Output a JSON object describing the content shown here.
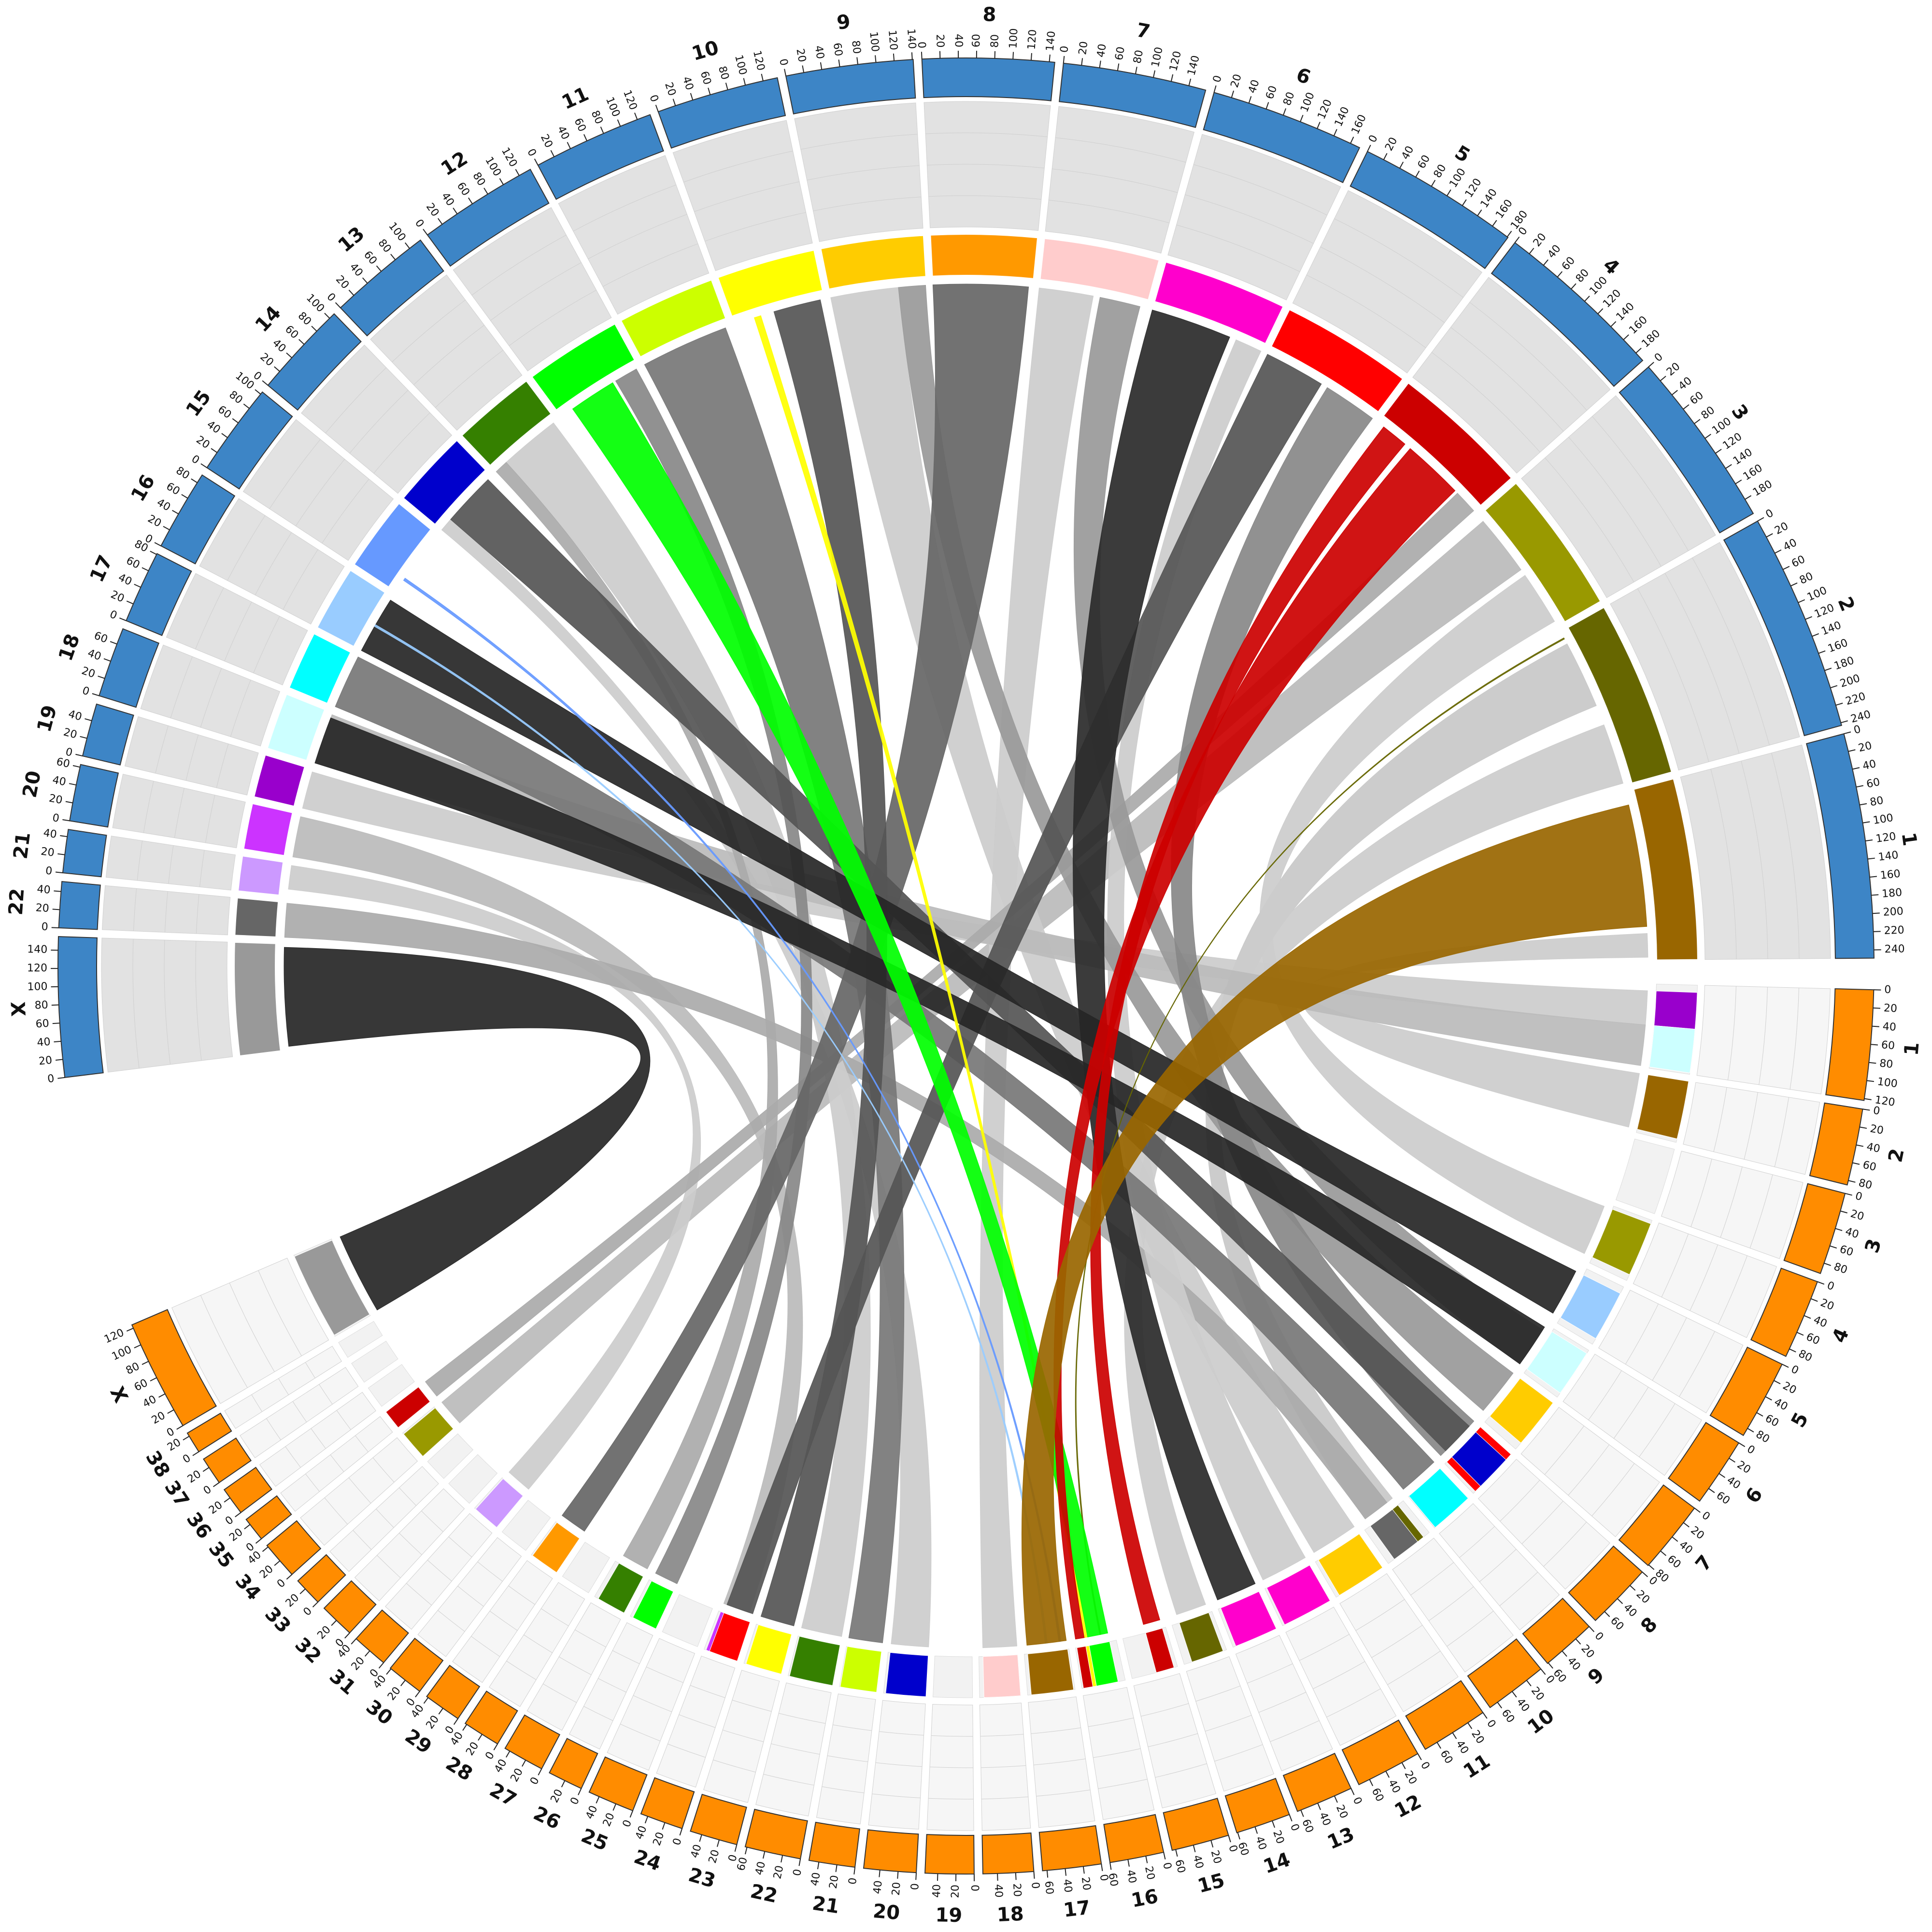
{
  "chart_data": {
    "type": "chord",
    "genome_a": {
      "band_color": "#3d85c6",
      "track_color": "#e2e2e2",
      "chromosomes": [
        {
          "name": "1",
          "length": 249,
          "color": "#996600",
          "ticks": [
            0,
            20,
            40,
            60,
            80,
            100,
            120,
            140,
            160,
            180,
            200,
            220,
            240
          ]
        },
        {
          "name": "2",
          "length": 243,
          "color": "#666600",
          "ticks": [
            0,
            20,
            40,
            60,
            80,
            100,
            120,
            140,
            160,
            180,
            200,
            220,
            240
          ]
        },
        {
          "name": "3",
          "length": 198,
          "color": "#999900",
          "ticks": [
            0,
            20,
            40,
            60,
            80,
            100,
            120,
            140,
            160,
            180
          ]
        },
        {
          "name": "4",
          "length": 191,
          "color": "#cc0000",
          "ticks": [
            0,
            20,
            40,
            60,
            80,
            100,
            120,
            140,
            160,
            180
          ]
        },
        {
          "name": "5",
          "length": 181,
          "color": "#ff0000",
          "ticks": [
            0,
            20,
            40,
            60,
            80,
            100,
            120,
            140,
            160,
            180
          ]
        },
        {
          "name": "6",
          "length": 171,
          "color": "#ff00cc",
          "ticks": [
            0,
            20,
            40,
            60,
            80,
            100,
            120,
            140,
            160
          ]
        },
        {
          "name": "7",
          "length": 159,
          "color": "#ffcccc",
          "ticks": [
            0,
            20,
            40,
            60,
            80,
            100,
            120,
            140
          ]
        },
        {
          "name": "8",
          "length": 146,
          "color": "#ff9900",
          "ticks": [
            0,
            20,
            40,
            60,
            80,
            100,
            120,
            140
          ]
        },
        {
          "name": "9",
          "length": 141,
          "color": "#ffcc00",
          "ticks": [
            0,
            20,
            40,
            60,
            80,
            100,
            120,
            140
          ]
        },
        {
          "name": "10",
          "length": 136,
          "color": "#ffff00",
          "ticks": [
            0,
            20,
            40,
            60,
            80,
            100,
            120
          ]
        },
        {
          "name": "11",
          "length": 135,
          "color": "#ccff00",
          "ticks": [
            0,
            20,
            40,
            60,
            80,
            100,
            120
          ]
        },
        {
          "name": "12",
          "length": 134,
          "color": "#00ff00",
          "ticks": [
            0,
            20,
            40,
            60,
            80,
            100,
            120
          ]
        },
        {
          "name": "13",
          "length": 115,
          "color": "#358000",
          "ticks": [
            0,
            20,
            40,
            60,
            80,
            100
          ]
        },
        {
          "name": "14",
          "length": 107,
          "color": "#0000cc",
          "ticks": [
            0,
            20,
            40,
            60,
            80,
            100
          ]
        },
        {
          "name": "15",
          "length": 103,
          "color": "#6699ff",
          "ticks": [
            0,
            20,
            40,
            60,
            80,
            100
          ]
        },
        {
          "name": "16",
          "length": 90,
          "color": "#99ccff",
          "ticks": [
            0,
            20,
            40,
            60,
            80
          ]
        },
        {
          "name": "17",
          "length": 81,
          "color": "#00ffff",
          "ticks": [
            0,
            20,
            40,
            60,
            80
          ]
        },
        {
          "name": "18",
          "length": 78,
          "color": "#ccffff",
          "ticks": [
            0,
            20,
            40,
            60
          ]
        },
        {
          "name": "19",
          "length": 59,
          "color": "#9900cc",
          "ticks": [
            0,
            20,
            40
          ]
        },
        {
          "name": "20",
          "length": 63,
          "color": "#cc33ff",
          "ticks": [
            0,
            20,
            40,
            60
          ]
        },
        {
          "name": "21",
          "length": 48,
          "color": "#cc99ff",
          "ticks": [
            0,
            20,
            40
          ]
        },
        {
          "name": "22",
          "length": 51,
          "color": "#666666",
          "ticks": [
            0,
            20,
            40
          ]
        },
        {
          "name": "X",
          "length": 155,
          "color": "#999999",
          "ticks": [
            0,
            20,
            40,
            60,
            80,
            100,
            120,
            140
          ]
        }
      ]
    },
    "genome_b": {
      "band_color": "#ff8c00",
      "track_color": "#f6f6f6",
      "chromosomes": [
        {
          "name": "1",
          "length": 122,
          "ticks": [
            0,
            20,
            40,
            60,
            80,
            100,
            120
          ]
        },
        {
          "name": "2",
          "length": 85,
          "ticks": [
            0,
            20,
            40,
            60,
            80
          ]
        },
        {
          "name": "3",
          "length": 92,
          "ticks": [
            0,
            20,
            40,
            60,
            80
          ]
        },
        {
          "name": "4",
          "length": 89,
          "ticks": [
            0,
            20,
            40,
            60,
            80
          ]
        },
        {
          "name": "5",
          "length": 89,
          "ticks": [
            0,
            20,
            40,
            60,
            80
          ]
        },
        {
          "name": "6",
          "length": 77,
          "ticks": [
            0,
            20,
            40,
            60
          ]
        },
        {
          "name": "7",
          "length": 81,
          "ticks": [
            0,
            20,
            40,
            60,
            80
          ]
        },
        {
          "name": "8",
          "length": 74,
          "ticks": [
            0,
            20,
            40,
            60
          ]
        },
        {
          "name": "9",
          "length": 61,
          "ticks": [
            0,
            20,
            40,
            60
          ]
        },
        {
          "name": "10",
          "length": 70,
          "ticks": [
            0,
            20,
            40,
            60
          ]
        },
        {
          "name": "11",
          "length": 75,
          "ticks": [
            0,
            20,
            40,
            60
          ]
        },
        {
          "name": "12",
          "length": 73,
          "ticks": [
            0,
            20,
            40,
            60
          ]
        },
        {
          "name": "13",
          "length": 64,
          "ticks": [
            0,
            20,
            40,
            60
          ]
        },
        {
          "name": "14",
          "length": 61,
          "ticks": [
            0,
            20,
            40,
            60
          ]
        },
        {
          "name": "15",
          "length": 64,
          "ticks": [
            0,
            20,
            40,
            60
          ]
        },
        {
          "name": "16",
          "length": 60,
          "ticks": [
            0,
            20,
            40,
            60
          ]
        },
        {
          "name": "17",
          "length": 65,
          "ticks": [
            0,
            20,
            40,
            60
          ]
        },
        {
          "name": "18",
          "length": 56,
          "ticks": [
            0,
            20,
            40
          ]
        },
        {
          "name": "19",
          "length": 54,
          "ticks": [
            0,
            20,
            40
          ]
        },
        {
          "name": "20",
          "length": 58,
          "ticks": [
            0,
            20,
            40
          ]
        },
        {
          "name": "21",
          "length": 51,
          "ticks": [
            0,
            20,
            40
          ]
        },
        {
          "name": "22",
          "length": 62,
          "ticks": [
            0,
            20,
            40,
            60
          ]
        },
        {
          "name": "23",
          "length": 53,
          "ticks": [
            0,
            20,
            40
          ]
        },
        {
          "name": "24",
          "length": 48,
          "ticks": [
            0,
            20,
            40
          ]
        },
        {
          "name": "25",
          "length": 52,
          "ticks": [
            0,
            20,
            40
          ]
        },
        {
          "name": "26",
          "length": 39,
          "ticks": [
            0,
            20
          ]
        },
        {
          "name": "27",
          "length": 46,
          "ticks": [
            0,
            20,
            40
          ]
        },
        {
          "name": "28",
          "length": 42,
          "ticks": [
            0,
            20,
            40
          ]
        },
        {
          "name": "29",
          "length": 42,
          "ticks": [
            0,
            20,
            40
          ]
        },
        {
          "name": "30",
          "length": 41,
          "ticks": [
            0,
            20,
            40
          ]
        },
        {
          "name": "31",
          "length": 40,
          "ticks": [
            0,
            20,
            40
          ]
        },
        {
          "name": "32",
          "length": 39,
          "ticks": [
            0,
            20
          ]
        },
        {
          "name": "33",
          "length": 32,
          "ticks": [
            0,
            20
          ]
        },
        {
          "name": "34",
          "length": 42,
          "ticks": [
            0,
            20,
            40
          ]
        },
        {
          "name": "35",
          "length": 27,
          "ticks": [
            0,
            20
          ]
        },
        {
          "name": "36",
          "length": 31,
          "ticks": [
            0,
            20
          ]
        },
        {
          "name": "37",
          "length": 31,
          "ticks": [
            0,
            20
          ]
        },
        {
          "name": "38",
          "length": 24,
          "ticks": [
            0,
            20
          ]
        },
        {
          "name": "X",
          "length": 124,
          "ticks": [
            0,
            20,
            40,
            60,
            80,
            100,
            120
          ]
        }
      ]
    },
    "links": [
      {
        "a": "2",
        "a_start": 20,
        "a_end": 120,
        "b": "10",
        "b_start": 10,
        "b_end": 60,
        "color": "#c8c8c8"
      },
      {
        "a": "2",
        "a_start": 150,
        "a_end": 240,
        "b": "14",
        "b_start": 5,
        "b_end": 50,
        "color": "#cccccc"
      },
      {
        "a": "3",
        "a_start": 10,
        "a_end": 100,
        "b": "34",
        "b_start": 0,
        "b_end": 40,
        "color": "#bbbbbb"
      },
      {
        "a": "3",
        "a_start": 110,
        "a_end": 190,
        "b": "4",
        "b_start": 5,
        "b_end": 80,
        "color": "#cccccc"
      },
      {
        "a": "7",
        "a_start": 0,
        "a_end": 80,
        "b": "18",
        "b_start": 0,
        "b_end": 50,
        "color": "#cccccc"
      },
      {
        "a": "9",
        "a_start": 0,
        "a_end": 100,
        "b": "11",
        "b_start": 0,
        "b_end": 70,
        "color": "#cccccc"
      },
      {
        "a": "13",
        "a_start": 20,
        "a_end": 110,
        "b": "22",
        "b_start": 0,
        "b_end": 60,
        "color": "#cccccc"
      },
      {
        "a": "19",
        "a_start": 0,
        "a_end": 55,
        "b": "1",
        "b_start": 10,
        "b_end": 60,
        "color": "#cccccc"
      },
      {
        "a": "20",
        "a_start": 0,
        "a_end": 60,
        "b": "24",
        "b_start": 5,
        "b_end": 45,
        "color": "#bbbbbb"
      },
      {
        "a": "21",
        "a_start": 10,
        "a_end": 45,
        "b": "31",
        "b_start": 0,
        "b_end": 38,
        "color": "#cccccc"
      },
      {
        "a": "22",
        "a_start": 0,
        "a_end": 50,
        "b": "10",
        "b_start": 20,
        "b_end": 60,
        "color": "#aaaaaa"
      },
      {
        "a": "1",
        "a_start": 210,
        "a_end": 245,
        "b": "2",
        "b_start": 0,
        "b_end": 80,
        "color": "#cccccc"
      },
      {
        "a": "6",
        "a_start": 130,
        "a_end": 170,
        "b": "12",
        "b_start": 0,
        "b_end": 70,
        "color": "#cccccc"
      },
      {
        "a": "14",
        "a_start": 0,
        "a_end": 20,
        "b": "20",
        "b_start": 0,
        "b_end": 55,
        "color": "#cccccc"
      },
      {
        "a": "18",
        "a_start": 0,
        "a_end": 75,
        "b": "1",
        "b_start": 60,
        "b_end": 120,
        "color": "#bbbbbb"
      },
      {
        "a": "13",
        "a_start": 0,
        "a_end": 20,
        "b": "27",
        "b_start": 0,
        "b_end": 40,
        "color": "#aaaaaa"
      },
      {
        "a": "4",
        "a_start": 155,
        "a_end": 190,
        "b": "35",
        "b_start": 0,
        "b_end": 27,
        "color": "#aaaaaa"
      },
      {
        "a": "7",
        "a_start": 90,
        "a_end": 150,
        "b": "6",
        "b_start": 10,
        "b_end": 70,
        "color": "#999999"
      },
      {
        "a": "9",
        "a_start": 100,
        "a_end": 140,
        "b": "7",
        "b_start": 0,
        "b_end": 70,
        "color": "#999999"
      },
      {
        "a": "5",
        "a_start": 100,
        "a_end": 180,
        "b": "8",
        "b_start": 0,
        "b_end": 70,
        "color": "#888888"
      },
      {
        "a": "12",
        "a_start": 95,
        "a_end": 130,
        "b": "26",
        "b_start": 0,
        "b_end": 35,
        "color": "#888888"
      },
      {
        "a": "11",
        "a_start": 0,
        "a_end": 130,
        "b": "21",
        "b_start": 0,
        "b_end": 50,
        "color": "#777777"
      },
      {
        "a": "17",
        "a_start": 0,
        "a_end": 80,
        "b": "9",
        "b_start": 0,
        "b_end": 60,
        "color": "#777777"
      },
      {
        "a": "8",
        "a_start": 0,
        "a_end": 140,
        "b": "29",
        "b_start": 0,
        "b_end": 40,
        "color": "#666666"
      },
      {
        "a": "5",
        "a_start": 0,
        "a_end": 90,
        "b": "24",
        "b_start": 0,
        "b_end": 40,
        "color": "#555555"
      },
      {
        "a": "10",
        "a_start": 60,
        "a_end": 130,
        "b": "23",
        "b_start": 0,
        "b_end": 50,
        "color": "#555555"
      },
      {
        "a": "14",
        "a_start": 20,
        "a_end": 100,
        "b": "8",
        "b_start": 10,
        "b_end": 60,
        "color": "#555555"
      },
      {
        "a": "6",
        "a_start": 0,
        "a_end": 120,
        "b": "13",
        "b_start": 0,
        "b_end": 60,
        "color": "#2a2a2a"
      },
      {
        "a": "16",
        "a_start": 0,
        "a_end": 85,
        "b": "5",
        "b_start": 10,
        "b_end": 80,
        "color": "#262626"
      },
      {
        "a": "18",
        "a_start": 0,
        "a_end": 70,
        "b": "6",
        "b_start": 5,
        "b_end": 70,
        "color": "#262626"
      },
      {
        "a": "X",
        "a_start": 5,
        "a_end": 150,
        "b": "X",
        "b_start": 2,
        "b_end": 122,
        "color": "#262626"
      },
      {
        "a": "15",
        "a_start": 20,
        "a_end": 24,
        "b": "17",
        "b_start": 10,
        "b_end": 13,
        "color": "#6699ff"
      },
      {
        "a": "16",
        "a_start": 40,
        "a_end": 43,
        "b": "17",
        "b_start": 30,
        "b_end": 33,
        "color": "#99ccff"
      },
      {
        "a": "2",
        "a_start": 10,
        "a_end": 12,
        "b": "16",
        "b_start": 20,
        "b_end": 22,
        "color": "#666600"
      },
      {
        "a": "10",
        "a_start": 30,
        "a_end": 40,
        "b": "16",
        "b_start": 40,
        "b_end": 45,
        "color": "#ffff00"
      },
      {
        "a": "12",
        "a_start": 20,
        "a_end": 90,
        "b": "16",
        "b_start": 10,
        "b_end": 40,
        "color": "#00ff00"
      },
      {
        "a": "4",
        "a_start": 10,
        "a_end": 50,
        "b": "15",
        "b_start": 5,
        "b_end": 30,
        "color": "#cc0000"
      },
      {
        "a": "4",
        "a_start": 60,
        "a_end": 150,
        "b": "16",
        "b_start": 45,
        "b_end": 58,
        "color": "#cc0000"
      },
      {
        "a": "1",
        "a_start": 20,
        "a_end": 200,
        "b": "17",
        "b_start": 2,
        "b_end": 60,
        "color": "#996600"
      }
    ]
  }
}
